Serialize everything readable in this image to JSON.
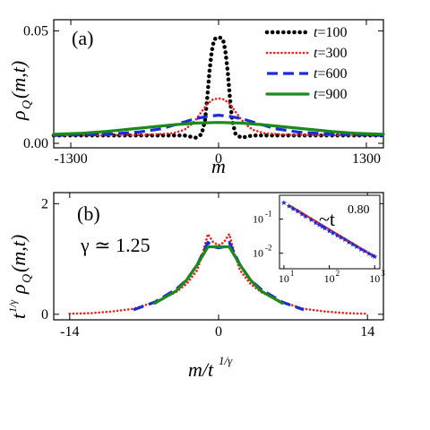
{
  "chart_data": [
    {
      "panel": "(a)",
      "type": "line",
      "xlabel": "m",
      "ylabel": "ρQ(m,t)",
      "xlim": [
        -1450,
        1450
      ],
      "ylim": [
        -0.002,
        0.055
      ],
      "xticks": [
        "-1300",
        "0",
        "1300"
      ],
      "yticks": [
        "0.00",
        "0.05"
      ],
      "legend_position": "top-right",
      "series": [
        {
          "name": "t=100",
          "legend_t": "t",
          "legend_rest": "=100",
          "color": "#000000",
          "style": "dotted-heavy",
          "x": [
            -1450,
            -300,
            -250,
            -200,
            -150,
            -120,
            -100,
            -80,
            -60,
            -40,
            -20,
            0,
            20,
            40,
            60,
            80,
            100,
            120,
            150,
            200,
            250,
            300,
            1450
          ],
          "y": [
            0.0035,
            0.0035,
            0.003,
            0.0025,
            0.004,
            0.01,
            0.02,
            0.032,
            0.041,
            0.046,
            0.047,
            0.047,
            0.047,
            0.046,
            0.041,
            0.032,
            0.02,
            0.01,
            0.004,
            0.0025,
            0.003,
            0.0035,
            0.0035
          ]
        },
        {
          "name": "t=300",
          "legend_t": "t",
          "legend_rest": "=300",
          "color": "#e8231e",
          "style": "dotted",
          "x": [
            -1450,
            -1000,
            -600,
            -400,
            -300,
            -250,
            -200,
            -150,
            -100,
            -50,
            0,
            50,
            100,
            150,
            200,
            250,
            300,
            400,
            600,
            1000,
            1450
          ],
          "y": [
            0.0035,
            0.0036,
            0.0038,
            0.0045,
            0.006,
            0.008,
            0.0105,
            0.014,
            0.0175,
            0.0195,
            0.02,
            0.0195,
            0.0175,
            0.014,
            0.0105,
            0.008,
            0.006,
            0.0045,
            0.0038,
            0.0036,
            0.0035
          ]
        },
        {
          "name": "t=600",
          "legend_t": "t",
          "legend_rest": "=600",
          "color": "#1b2bd6",
          "style": "dashed",
          "x": [
            -1450,
            -1000,
            -700,
            -500,
            -400,
            -300,
            -200,
            -100,
            0,
            100,
            200,
            300,
            400,
            500,
            700,
            1000,
            1450
          ],
          "y": [
            0.0035,
            0.004,
            0.005,
            0.0065,
            0.008,
            0.0095,
            0.011,
            0.012,
            0.0125,
            0.012,
            0.011,
            0.0095,
            0.008,
            0.0065,
            0.005,
            0.004,
            0.0035
          ]
        },
        {
          "name": "t=900",
          "legend_t": "t",
          "legend_rest": "=900",
          "color": "#1a8a1a",
          "style": "solid",
          "x": [
            -1450,
            -1200,
            -1000,
            -800,
            -600,
            -400,
            -200,
            0,
            200,
            400,
            600,
            800,
            1000,
            1200,
            1450
          ],
          "y": [
            0.004,
            0.0045,
            0.0052,
            0.0062,
            0.0072,
            0.0082,
            0.009,
            0.0093,
            0.009,
            0.0082,
            0.0072,
            0.0062,
            0.0052,
            0.0045,
            0.004
          ]
        }
      ]
    },
    {
      "panel": "(b)",
      "type": "line",
      "xlabel": "m/t^(1/γ)",
      "ylabel": "t^(1/γ) ρQ(m,t)",
      "xlim": [
        -15.5,
        15.5
      ],
      "ylim": [
        -0.1,
        2.2
      ],
      "xticks": [
        "-14",
        "0",
        "14"
      ],
      "yticks": [
        "0",
        "2"
      ],
      "annotation": "γ ≃ 1.25",
      "series": [
        {
          "name": "t=300",
          "color": "#e8231e",
          "style": "dotted",
          "x": [
            -14,
            -12,
            -10,
            -8,
            -6,
            -4,
            -3,
            -2,
            -1.5,
            -1,
            -0.5,
            0,
            0.5,
            1,
            1.5,
            2,
            3,
            4,
            6,
            8,
            10,
            12,
            14
          ],
          "y": [
            0.01,
            0.02,
            0.05,
            0.1,
            0.22,
            0.4,
            0.55,
            0.8,
            1.1,
            1.45,
            1.3,
            1.25,
            1.3,
            1.45,
            1.1,
            0.8,
            0.55,
            0.4,
            0.22,
            0.1,
            0.05,
            0.02,
            0.01
          ]
        },
        {
          "name": "t=600",
          "color": "#1b2bd6",
          "style": "dashed",
          "x": [
            -8,
            -6,
            -4,
            -3,
            -2,
            -1,
            -0.5,
            0,
            0.5,
            1,
            2,
            3,
            4,
            6,
            8
          ],
          "y": [
            0.08,
            0.22,
            0.45,
            0.62,
            0.9,
            1.3,
            1.22,
            1.2,
            1.22,
            1.3,
            0.9,
            0.62,
            0.45,
            0.22,
            0.08
          ]
        },
        {
          "name": "t=900",
          "color": "#1a8a1a",
          "style": "solid",
          "x": [
            -6,
            -4,
            -3,
            -2,
            -1,
            0,
            1,
            2,
            3,
            4,
            6
          ],
          "y": [
            0.2,
            0.42,
            0.62,
            0.9,
            1.22,
            1.22,
            1.22,
            0.9,
            0.62,
            0.42,
            0.2
          ]
        }
      ]
    },
    {
      "panel": "inset",
      "type": "scatter",
      "xscale": "log",
      "yscale": "log",
      "xlim": [
        8,
        1300
      ],
      "ylim": [
        0.0035,
        0.5
      ],
      "xticks": [
        {
          "base": "10",
          "exp": "1",
          "v": 10
        },
        {
          "base": "10",
          "exp": "2",
          "v": 100
        },
        {
          "base": "10",
          "exp": "3",
          "v": 1000
        }
      ],
      "yticks": [
        {
          "base": "10",
          "exp": "-1",
          "v": 0.1
        },
        {
          "base": "10",
          "exp": "-2",
          "v": 0.01
        }
      ],
      "annotation_base": "~t",
      "annotation_exp": "0.80",
      "marker_color": "#1b2bd6",
      "fit_color": "#e8231e",
      "x": [
        10,
        13,
        16,
        20,
        25,
        30,
        40,
        50,
        60,
        70,
        80,
        100,
        120,
        150,
        180,
        220,
        270,
        330,
        400,
        500,
        600,
        750,
        900,
        1000
      ],
      "y": [
        0.3,
        0.24,
        0.2,
        0.17,
        0.14,
        0.12,
        0.095,
        0.078,
        0.068,
        0.06,
        0.054,
        0.045,
        0.039,
        0.033,
        0.029,
        0.025,
        0.021,
        0.018,
        0.0155,
        0.013,
        0.0115,
        0.0097,
        0.0085,
        0.0079
      ]
    }
  ]
}
